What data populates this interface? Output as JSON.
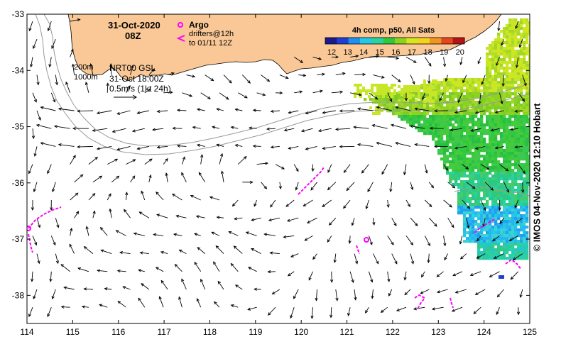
{
  "header": {
    "date": "31-Oct-2020",
    "time": "08Z"
  },
  "legend": {
    "argo_label": "Argo",
    "drifters_label": "drifters@12h",
    "drifters_to": "to 01/11 12Z"
  },
  "depth_labels": [
    "200m",
    "1000m"
  ],
  "current_info": {
    "product": "NRT00 GSL",
    "datetime": "31-Oct 18:00Z",
    "scale": "0.5m/s (1kt 24h)"
  },
  "colorbar": {
    "title": "4h comp, p50, All Sats",
    "ticks": [
      "12",
      "13",
      "14",
      "15",
      "16",
      "17",
      "18",
      "19",
      "20"
    ],
    "min": 12,
    "max": 20,
    "colors": [
      "#1a1a8c",
      "#1f3fd0",
      "#1f8ff0",
      "#22c8e6",
      "#2ad2a0",
      "#32c83c",
      "#8cd21e",
      "#d7e61e",
      "#f5d21e",
      "#f0961e",
      "#e6461e",
      "#b41414"
    ]
  },
  "axes": {
    "lon": [
      "114",
      "115",
      "116",
      "117",
      "118",
      "119",
      "120",
      "121",
      "122",
      "123",
      "124",
      "125"
    ],
    "lat": [
      "-33",
      "-34",
      "-35",
      "-36",
      "-37",
      "-38"
    ],
    "lon_range": [
      114,
      125
    ],
    "lat_range": [
      -33,
      -38.5
    ]
  },
  "credit": "© IMOS 04-Nov-2020 12:10 Hobart",
  "colors": {
    "land": "#fac896",
    "drifter": "#ff00ff",
    "arrow": "#000000",
    "isobath": "#999999"
  }
}
